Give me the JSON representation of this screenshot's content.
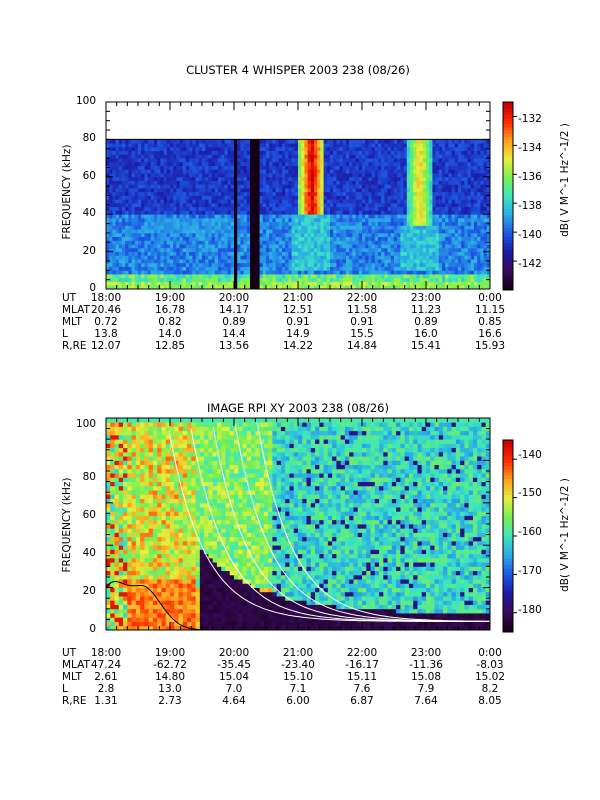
{
  "chart_data": [
    {
      "type": "heatmap",
      "title": "CLUSTER 4 WHISPER 2003 238 (08/26)",
      "ylabel": "FREQUENCY (kHz)",
      "xlim": [
        18.0,
        24.0
      ],
      "ylim": [
        0,
        100
      ],
      "y_ticks": [
        "0",
        "20",
        "40",
        "60",
        "80",
        "100"
      ],
      "data_frequency_max_khz": 80,
      "colorbar": {
        "label": "dB( V M^-1 Hz^-1/2 )",
        "range": [
          -144,
          -131
        ],
        "ticks": [
          "-132",
          "-134",
          "-136",
          "-138",
          "-140",
          "-142"
        ]
      },
      "data_gaps_ut_hours": [
        [
          20.02,
          20.06
        ],
        [
          20.25,
          20.4
        ]
      ],
      "emission_bands": [
        {
          "ut_start": 21.02,
          "ut_end": 21.42,
          "f_low_khz": 40,
          "level": "strong"
        },
        {
          "ut_start": 22.7,
          "ut_end": 23.1,
          "f_low_khz": 35,
          "level": "moderate"
        }
      ],
      "ephemeris": {
        "rows": [
          "UT",
          "MLAT",
          "MLT",
          "L",
          "R,RE"
        ],
        "UT": [
          "18:00",
          "19:00",
          "20:00",
          "21:00",
          "22:00",
          "23:00",
          "0:00"
        ],
        "MLAT": [
          "20.46",
          "16.78",
          "14.17",
          "12.51",
          "11.58",
          "11.23",
          "11.15"
        ],
        "MLT": [
          "0.72",
          "0.82",
          "0.89",
          "0.91",
          "0.91",
          "0.89",
          "0.85"
        ],
        "L": [
          "13.8",
          "14.0",
          "14.4",
          "14.9",
          "15.5",
          "16.0",
          "16.6"
        ],
        "R,RE": [
          "12.07",
          "12.85",
          "13.56",
          "14.22",
          "14.84",
          "15.41",
          "15.93"
        ]
      }
    },
    {
      "type": "heatmap",
      "title": "IMAGE RPI XY 2003 238 (08/26)",
      "ylabel": "FREQUENCY (kHz)",
      "xlim": [
        18.0,
        24.0
      ],
      "ylim": [
        0,
        100
      ],
      "y_ticks": [
        "0",
        "20",
        "40",
        "60",
        "80",
        "100"
      ],
      "colorbar": {
        "label": "dB( V M^-1 Hz^-1/2 )",
        "range": [
          -185,
          -135
        ],
        "ticks": [
          "-140",
          "-150",
          "-160",
          "-170",
          "-180"
        ]
      },
      "white_curve_shifts_ut_hours": [
        0,
        0.35,
        0.7,
        1.05,
        1.4
      ],
      "black_curve_peak": {
        "ut": 18.55,
        "f_khz": 21
      },
      "ephemeris": {
        "rows": [
          "UT",
          "MLAT",
          "MLT",
          "L",
          "R,RE"
        ],
        "UT": [
          "18:00",
          "19:00",
          "20:00",
          "21:00",
          "22:00",
          "23:00",
          "0:00"
        ],
        "MLAT": [
          "47.24",
          "-62.72",
          "-35.45",
          "-23.40",
          "-16.17",
          "-11.36",
          "-8.03"
        ],
        "MLT": [
          "2.61",
          "14.80",
          "15.04",
          "15.10",
          "15.11",
          "15.08",
          "15.02"
        ],
        "L": [
          "2.8",
          "13.0",
          "7.0",
          "7.1",
          "7.6",
          "7.9",
          "8.2"
        ],
        "R,RE": [
          "1.31",
          "2.73",
          "4.64",
          "6.00",
          "6.87",
          "7.64",
          "8.05"
        ]
      }
    }
  ],
  "colors": {
    "palette": [
      "#150018",
      "#3a0a5c",
      "#1c1ca8",
      "#1e5ae6",
      "#2aaae6",
      "#3ce6c0",
      "#78f050",
      "#e6f03c",
      "#ff9e1e",
      "#ff2a00",
      "#c80000"
    ]
  }
}
